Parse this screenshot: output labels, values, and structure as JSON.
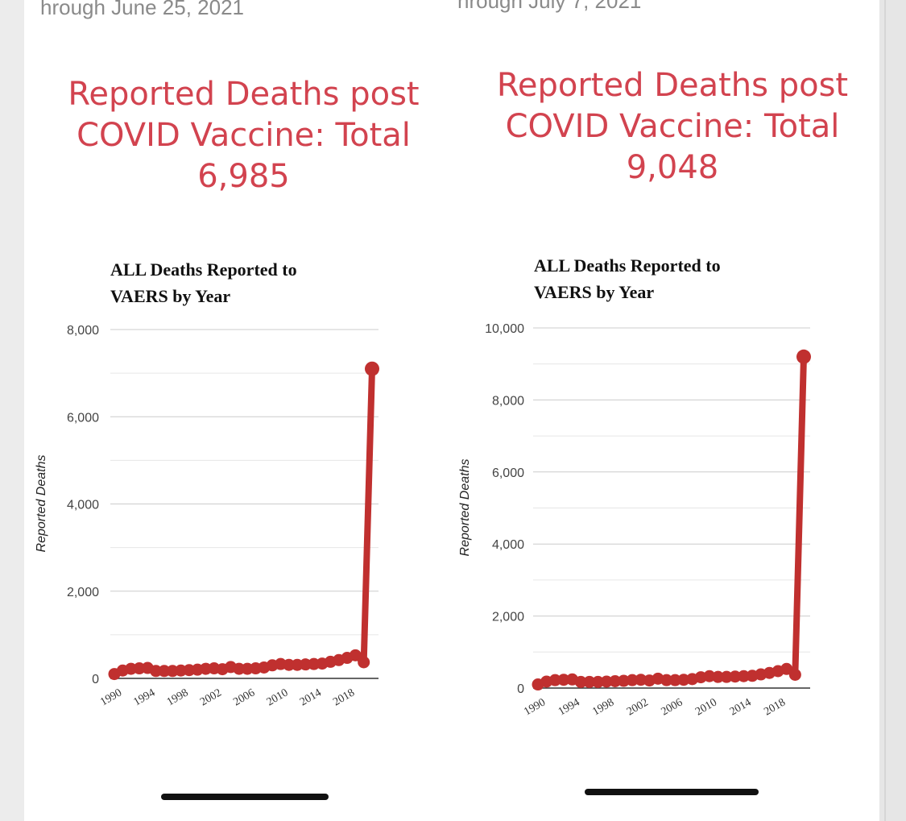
{
  "panels": [
    {
      "subtitle": "hrough June 25, 2021",
      "headline": [
        "Reported Deaths post",
        "COVID Vaccine: Total",
        "6,985"
      ],
      "chart_title": [
        "ALL Deaths Reported to",
        "VAERS by Year"
      ],
      "y_label": "Reported Deaths"
    },
    {
      "subtitle": "hrough July 7, 2021",
      "headline": [
        "Reported Deaths post",
        "COVID Vaccine: Total",
        "9,048"
      ],
      "chart_title": [
        "ALL Deaths Reported to",
        "VAERS by Year"
      ],
      "y_label": "Reported Deaths"
    }
  ],
  "colors": {
    "headline": "#d2434f",
    "series": "#c0302f",
    "grid": "#cccccc"
  },
  "chart_data": [
    {
      "type": "line",
      "title": "ALL Deaths Reported to VAERS by Year",
      "xlabel": "",
      "ylabel": "Reported Deaths",
      "ylim": [
        0,
        8000
      ],
      "yticks": [
        0,
        2000,
        4000,
        6000,
        8000
      ],
      "ytick_labels": [
        "0",
        "2,000",
        "4,000",
        "6,000",
        "8,000"
      ],
      "xtick_labels": [
        "1990",
        "1994",
        "1998",
        "2002",
        "2006",
        "2010",
        "2014",
        "2018"
      ],
      "x": [
        1990,
        1991,
        1992,
        1993,
        1994,
        1995,
        1996,
        1997,
        1998,
        1999,
        2000,
        2001,
        2002,
        2003,
        2004,
        2005,
        2006,
        2007,
        2008,
        2009,
        2010,
        2011,
        2012,
        2013,
        2014,
        2015,
        2016,
        2017,
        2018,
        2019,
        2020,
        2021
      ],
      "series": [
        {
          "name": "Deaths",
          "values": [
            100,
            180,
            220,
            230,
            240,
            170,
            170,
            170,
            180,
            190,
            200,
            220,
            230,
            210,
            260,
            220,
            220,
            230,
            250,
            300,
            330,
            310,
            310,
            320,
            330,
            340,
            380,
            420,
            470,
            530,
            370,
            7100
          ]
        }
      ]
    },
    {
      "type": "line",
      "title": "ALL Deaths Reported to VAERS by Year",
      "xlabel": "",
      "ylabel": "Reported Deaths",
      "ylim": [
        0,
        10000
      ],
      "yticks": [
        0,
        2000,
        4000,
        6000,
        8000,
        10000
      ],
      "ytick_labels": [
        "0",
        "2,000",
        "4,000",
        "6,000",
        "8,000",
        "10,000"
      ],
      "xtick_labels": [
        "1990",
        "1994",
        "1998",
        "2002",
        "2006",
        "2010",
        "2014",
        "2018"
      ],
      "x": [
        1990,
        1991,
        1992,
        1993,
        1994,
        1995,
        1996,
        1997,
        1998,
        1999,
        2000,
        2001,
        2002,
        2003,
        2004,
        2005,
        2006,
        2007,
        2008,
        2009,
        2010,
        2011,
        2012,
        2013,
        2014,
        2015,
        2016,
        2017,
        2018,
        2019,
        2020,
        2021
      ],
      "series": [
        {
          "name": "Deaths",
          "values": [
            100,
            180,
            220,
            230,
            240,
            170,
            170,
            170,
            180,
            190,
            200,
            220,
            230,
            210,
            260,
            220,
            220,
            230,
            250,
            300,
            330,
            310,
            310,
            320,
            330,
            340,
            380,
            420,
            470,
            530,
            370,
            9200
          ]
        }
      ]
    }
  ]
}
